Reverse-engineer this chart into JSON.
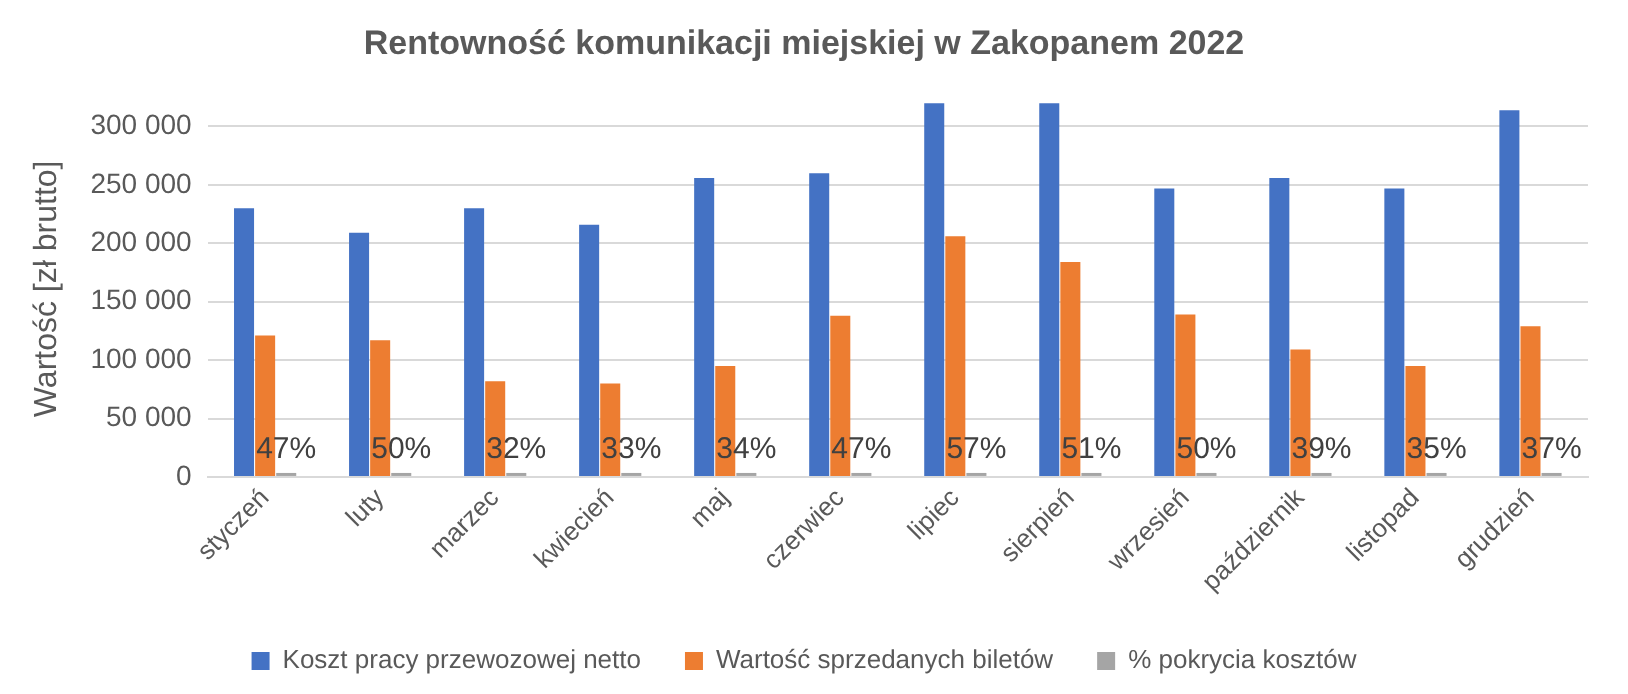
{
  "chart_data": {
    "type": "bar",
    "title": "Rentowność komunikacji miejskiej w Zakopanem 2022",
    "ylabel": "Wartość [zł brutto]",
    "categories": [
      "styczeń",
      "luty",
      "marzec",
      "kwiecień",
      "maj",
      "czerwiec",
      "lipiec",
      "sierpień",
      "wrzesień",
      "październik",
      "listopad",
      "grudzień"
    ],
    "series": [
      {
        "name": "Koszt pracy przewozowej netto",
        "color": "#4472c4",
        "values": [
          230000,
          209000,
          230000,
          216000,
          256000,
          260000,
          320000,
          320000,
          247000,
          256000,
          247000,
          314000
        ]
      },
      {
        "name": "Wartość sprzedanych biletów",
        "color": "#ed7d31",
        "values": [
          121000,
          117000,
          82000,
          80000,
          95000,
          138000,
          206000,
          184000,
          139000,
          109000,
          95000,
          129000
        ]
      },
      {
        "name": "% pokrycia kosztów",
        "color": "#a5a5a5",
        "values": [
          0.47,
          0.5,
          0.32,
          0.33,
          0.34,
          0.47,
          0.57,
          0.51,
          0.5,
          0.39,
          0.35,
          0.37
        ],
        "value_labels": [
          "47%",
          "50%",
          "32%",
          "33%",
          "34%",
          "47%",
          "57%",
          "51%",
          "50%",
          "39%",
          "35%",
          "37%"
        ]
      }
    ],
    "ylim": [
      0,
      322000
    ],
    "yticks": [
      {
        "value": 0,
        "label": "0"
      },
      {
        "value": 50000,
        "label": "50 000"
      },
      {
        "value": 100000,
        "label": "100 000"
      },
      {
        "value": 150000,
        "label": "150 000"
      },
      {
        "value": 200000,
        "label": "200 000"
      },
      {
        "value": 250000,
        "label": "250 000"
      },
      {
        "value": 300000,
        "label": "300 000"
      }
    ],
    "grid": "y",
    "legend": "bottom"
  }
}
